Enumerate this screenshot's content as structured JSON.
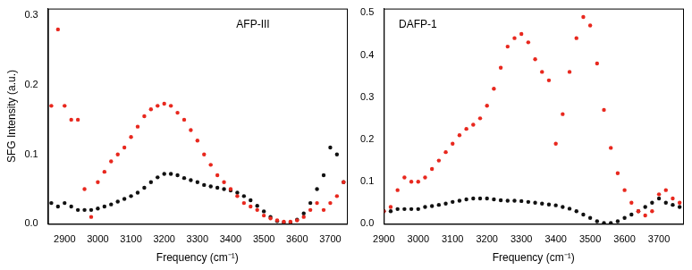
{
  "chart_data": [
    {
      "type": "scatter",
      "annotations": [
        "AFP-III"
      ],
      "x_label": "Frequency (cm⁻¹)",
      "y_label": "SFG Intensity (a.u.)",
      "xlim": [
        2850,
        3750
      ],
      "xticks": [
        2900,
        3000,
        3100,
        3200,
        3300,
        3400,
        3500,
        3600,
        3700
      ],
      "ylim": [
        0,
        0.31
      ],
      "yticks": [
        {
          "value": 0,
          "label": "0.0"
        },
        0.1,
        0.2,
        0.3
      ],
      "grid": false,
      "x": [
        2860,
        2880,
        2900,
        2920,
        2940,
        2960,
        2980,
        3000,
        3020,
        3040,
        3060,
        3080,
        3100,
        3120,
        3140,
        3160,
        3180,
        3200,
        3220,
        3240,
        3260,
        3280,
        3300,
        3320,
        3340,
        3360,
        3380,
        3400,
        3420,
        3440,
        3460,
        3480,
        3500,
        3520,
        3540,
        3560,
        3580,
        3600,
        3620,
        3640,
        3660,
        3680,
        3700,
        3720,
        3740
      ],
      "series": [
        {
          "color": "#e8281e",
          "marker": "circle",
          "values": [
            0.17,
            0.28,
            0.17,
            0.15,
            0.15,
            0.05,
            0.01,
            0.06,
            0.075,
            0.09,
            0.1,
            0.11,
            0.125,
            0.14,
            0.155,
            0.165,
            0.17,
            0.173,
            0.17,
            0.16,
            0.15,
            0.135,
            0.12,
            0.1,
            0.085,
            0.07,
            0.06,
            0.05,
            0.04,
            0.03,
            0.025,
            0.02,
            0.012,
            0.008,
            0.005,
            0.003,
            0.003,
            0.005,
            0.01,
            0.02,
            0.03,
            0.02,
            0.03,
            0.04,
            0.06
          ]
        },
        {
          "color": "#111111",
          "marker": "circle",
          "values": [
            0.03,
            0.025,
            0.03,
            0.025,
            0.02,
            0.02,
            0.02,
            0.022,
            0.025,
            0.028,
            0.032,
            0.036,
            0.04,
            0.045,
            0.052,
            0.06,
            0.067,
            0.072,
            0.072,
            0.07,
            0.066,
            0.063,
            0.06,
            0.056,
            0.054,
            0.052,
            0.05,
            0.048,
            0.045,
            0.04,
            0.034,
            0.026,
            0.018,
            0.01,
            0.004,
            0.002,
            0.002,
            0.006,
            0.015,
            0.03,
            0.05,
            0.07,
            0.11,
            0.1,
            0.06
          ]
        }
      ]
    },
    {
      "type": "scatter",
      "annotations": [
        "DAFP-1"
      ],
      "x_label": "Frequency (cm⁻¹)",
      "xlim": [
        2900,
        3770
      ],
      "xticks": [
        2900,
        3000,
        3100,
        3200,
        3300,
        3400,
        3500,
        3600,
        3700
      ],
      "ylim": [
        0,
        0.51
      ],
      "yticks": [
        {
          "value": 0,
          "label": "0.0"
        },
        0.1,
        0.2,
        0.3,
        0.4,
        0.5
      ],
      "grid": false,
      "x": [
        2900,
        2920,
        2940,
        2960,
        2980,
        3000,
        3020,
        3040,
        3060,
        3080,
        3100,
        3120,
        3140,
        3160,
        3180,
        3200,
        3220,
        3240,
        3260,
        3280,
        3300,
        3320,
        3340,
        3360,
        3380,
        3400,
        3420,
        3440,
        3460,
        3480,
        3500,
        3520,
        3540,
        3560,
        3580,
        3600,
        3620,
        3640,
        3660,
        3680,
        3700,
        3720,
        3740,
        3760
      ],
      "series": [
        {
          "color": "#e8281e",
          "marker": "circle",
          "values": [
            0.03,
            0.04,
            0.08,
            0.11,
            0.1,
            0.1,
            0.11,
            0.13,
            0.15,
            0.17,
            0.19,
            0.21,
            0.225,
            0.235,
            0.25,
            0.28,
            0.32,
            0.37,
            0.42,
            0.44,
            0.45,
            0.43,
            0.39,
            0.36,
            0.34,
            0.19,
            0.26,
            0.36,
            0.44,
            0.49,
            0.47,
            0.38,
            0.27,
            0.18,
            0.12,
            0.08,
            0.05,
            0.03,
            0.02,
            0.03,
            0.07,
            0.08,
            0.06,
            0.05
          ]
        },
        {
          "color": "#111111",
          "marker": "circle",
          "values": [
            0.03,
            0.03,
            0.035,
            0.035,
            0.035,
            0.035,
            0.04,
            0.042,
            0.045,
            0.048,
            0.052,
            0.055,
            0.058,
            0.06,
            0.06,
            0.06,
            0.058,
            0.056,
            0.055,
            0.055,
            0.054,
            0.052,
            0.05,
            0.048,
            0.046,
            0.044,
            0.04,
            0.036,
            0.03,
            0.022,
            0.014,
            0.006,
            0.002,
            0.002,
            0.006,
            0.014,
            0.022,
            0.03,
            0.04,
            0.05,
            0.06,
            0.05,
            0.045,
            0.04
          ]
        }
      ]
    }
  ]
}
